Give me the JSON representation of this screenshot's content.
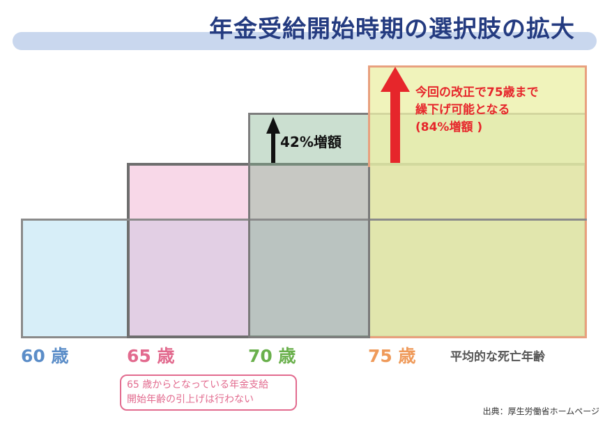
{
  "title": "年金受給開始時期の選択肢の拡大",
  "increase_42": {
    "label": "42%増額"
  },
  "note_75": {
    "line1": "今回の改正で75歳まで",
    "line2": "繰下げ可能となる",
    "line3": "(84%増額 )"
  },
  "ages": [
    {
      "label": "60 歳"
    },
    {
      "label": "65 歳"
    },
    {
      "label": "70 歳"
    },
    {
      "label": "75 歳"
    }
  ],
  "death_age_label": "平均的な死亡年齢",
  "note_65": {
    "line1": "65 歳からとなっている年金支給",
    "line2": "開始年齢の引上げは行わない"
  },
  "source": "出典：厚生労働省ホームページ",
  "colors": {
    "title": "#243b80",
    "title_bar": "#c9d7ee",
    "block_60": "#d7eef8",
    "block_65": "#f0a8cc",
    "block_70": "#84b28e",
    "block_75": "#ecf0a8",
    "arrow_red": "#e6262b",
    "arrow_black": "#111111",
    "age_60": "#5b8dc8",
    "age_65": "#e26a8e",
    "age_70": "#6ab04c",
    "age_75": "#ef9a5a"
  }
}
